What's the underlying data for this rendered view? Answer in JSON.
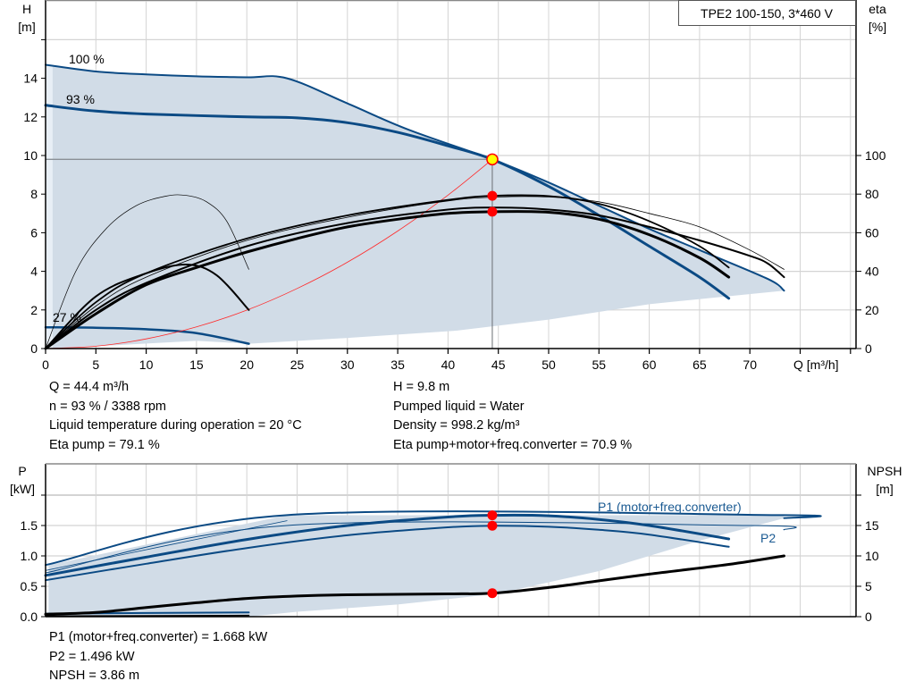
{
  "colors": {
    "curve_blue": "#0b4a84",
    "region_fill": "#d1dce7",
    "region_light": "#e8eff6",
    "grid": "#d4d4d4",
    "system_curve": "#ff2a2a",
    "duty_point": "#ffff00",
    "marker_red": "#ff0000",
    "label_blue": "#1a5a92"
  },
  "chart_data": [
    {
      "type": "line",
      "title": "TPE2 100-150, 3*460 V",
      "xlabel": "Q [m³/h]",
      "ylabel_top": "H",
      "ylabel_unit": "[m]",
      "y2label_top": "eta",
      "y2label_unit": "[%]",
      "xlim": [
        0,
        80
      ],
      "ylim": [
        0,
        18
      ],
      "y2lim": [
        0,
        180
      ],
      "grid": true,
      "xticks": [
        "0",
        "5",
        "10",
        "15",
        "20",
        "25",
        "30",
        "35",
        "40",
        "45",
        "50",
        "55",
        "60",
        "65",
        "70"
      ],
      "yticks": [
        "0",
        "2",
        "4",
        "6",
        "8",
        "10",
        "12",
        "14"
      ],
      "y2ticks": [
        "0",
        "20",
        "40",
        "60",
        "80",
        "100"
      ],
      "regions": [
        {
          "axis": "H",
          "points": [
            [
              0.7,
              0
            ],
            [
              0.7,
              0.5
            ],
            [
              0.4,
              3
            ],
            [
              0.3,
              14.7
            ],
            [
              5,
              14.35
            ],
            [
              10,
              14.2
            ],
            [
              15,
              14.1
            ],
            [
              20,
              14.05
            ],
            [
              24,
              14.0
            ],
            [
              30,
              12.7
            ],
            [
              36,
              11.35
            ],
            [
              44.4,
              9.8
            ],
            [
              50,
              8.6
            ],
            [
              55,
              7.4
            ],
            [
              60,
              6.2
            ],
            [
              65,
              5.1
            ],
            [
              71.8,
              3.6
            ],
            [
              73.4,
              3.0
            ],
            [
              60,
              2.3
            ],
            [
              50,
              1.5
            ],
            [
              40.9,
              0.93
            ],
            [
              30,
              0.55
            ],
            [
              20.2,
              0.25
            ],
            [
              15,
              0.4
            ]
          ]
        },
        {
          "axis": "H",
          "light": true,
          "points": [
            [
              0,
              0
            ],
            [
              0,
              14.7
            ],
            [
              0.7,
              14.7
            ],
            [
              0.7,
              0
            ]
          ]
        }
      ],
      "series": [
        {
          "name": "100 %",
          "axis": "H",
          "color": "blue",
          "width": 2,
          "points": [
            [
              0,
              14.7
            ],
            [
              5,
              14.35
            ],
            [
              10,
              14.2
            ],
            [
              15,
              14.1
            ],
            [
              20,
              14.05
            ],
            [
              24,
              14.0
            ],
            [
              30,
              12.7
            ],
            [
              36,
              11.35
            ],
            [
              44.4,
              9.8
            ],
            [
              50,
              8.6
            ],
            [
              55,
              7.4
            ],
            [
              60,
              6.2
            ],
            [
              65,
              5.1
            ],
            [
              71.8,
              3.6
            ],
            [
              73.4,
              3.0
            ]
          ]
        },
        {
          "name": "93 %",
          "axis": "H",
          "color": "blue",
          "width": 3,
          "points": [
            [
              0,
              12.6
            ],
            [
              5,
              12.3
            ],
            [
              10,
              12.15
            ],
            [
              20,
              12.0
            ],
            [
              25,
              11.95
            ],
            [
              30,
              11.7
            ],
            [
              35,
              11.2
            ],
            [
              40,
              10.5
            ],
            [
              44.4,
              9.8
            ],
            [
              50,
              8.4
            ],
            [
              55,
              6.9
            ],
            [
              60,
              5.3
            ],
            [
              65,
              3.7
            ],
            [
              67.9,
              2.6
            ]
          ]
        },
        {
          "name": "27 %",
          "axis": "H",
          "color": "blue",
          "width": 2.5,
          "points": [
            [
              0,
              1.1
            ],
            [
              5,
              1.08
            ],
            [
              10,
              1.0
            ],
            [
              15,
              0.8
            ],
            [
              20.2,
              0.25
            ]
          ]
        },
        {
          "axis": "H",
          "color": "red",
          "width": 0.8,
          "points": [
            [
              0,
              0
            ],
            [
              5,
              0.12
            ],
            [
              10,
              0.5
            ],
            [
              15,
              1.12
            ],
            [
              20,
              1.99
            ],
            [
              25,
              3.11
            ],
            [
              30,
              4.47
            ],
            [
              35,
              6.09
            ],
            [
              40,
              7.95
            ],
            [
              44.4,
              9.8
            ]
          ]
        },
        {
          "axis": "eta",
          "color": "black",
          "width": 0.7,
          "points": [
            [
              0,
              0
            ],
            [
              3,
              40
            ],
            [
              6,
              62
            ],
            [
              9,
              74
            ],
            [
              12,
              79
            ],
            [
              14,
              79.3
            ],
            [
              16,
              76
            ],
            [
              18,
              66
            ],
            [
              20.2,
              41
            ]
          ]
        },
        {
          "axis": "eta",
          "color": "black",
          "width": 2,
          "points": [
            [
              0,
              0
            ],
            [
              5,
              27
            ],
            [
              10,
              39
            ],
            [
              14,
              43.5
            ],
            [
              17,
              38
            ],
            [
              20.2,
              20
            ]
          ]
        },
        {
          "axis": "eta",
          "color": "black",
          "width": 0.8,
          "points": [
            [
              0,
              0
            ],
            [
              5,
              22
            ],
            [
              10,
              37
            ],
            [
              20,
              56
            ],
            [
              30,
              68
            ],
            [
              40,
              76.5
            ],
            [
              45,
              78.5
            ],
            [
              50,
              78.5
            ],
            [
              55,
              76
            ],
            [
              60,
              70
            ],
            [
              65,
              63
            ],
            [
              70,
              51
            ],
            [
              73.4,
              41
            ]
          ]
        },
        {
          "axis": "eta",
          "color": "black",
          "width": 1.8,
          "points": [
            [
              0,
              0
            ],
            [
              5,
              24
            ],
            [
              10,
              39
            ],
            [
              20,
              57
            ],
            [
              30,
              69
            ],
            [
              40,
              77
            ],
            [
              44.4,
              79.1
            ],
            [
              50,
              79
            ],
            [
              55,
              75
            ],
            [
              60,
              66
            ],
            [
              65,
              53
            ],
            [
              67.9,
              42
            ]
          ]
        },
        {
          "axis": "eta",
          "color": "black",
          "width": 2,
          "points": [
            [
              0,
              0
            ],
            [
              5,
              20
            ],
            [
              10,
              34
            ],
            [
              20,
              53
            ],
            [
              30,
              65
            ],
            [
              40,
              72
            ],
            [
              45,
              73
            ],
            [
              50,
              72
            ],
            [
              55,
              69
            ],
            [
              60,
              63
            ],
            [
              65,
              56
            ],
            [
              70,
              48
            ],
            [
              71.8,
              44
            ],
            [
              73.4,
              37
            ]
          ]
        },
        {
          "axis": "eta",
          "color": "black",
          "width": 3,
          "points": [
            [
              0,
              0
            ],
            [
              5,
              18
            ],
            [
              10,
              33
            ],
            [
              15,
              42
            ],
            [
              20,
              50
            ],
            [
              25,
              57
            ],
            [
              30,
              63
            ],
            [
              35,
              67
            ],
            [
              40,
              70
            ],
            [
              44.4,
              70.9
            ],
            [
              50,
              70.6
            ],
            [
              55,
              67
            ],
            [
              60,
              59
            ],
            [
              65,
              47
            ],
            [
              67.9,
              37
            ]
          ]
        }
      ],
      "duty_point": {
        "Q": 44.4,
        "H": 9.8,
        "eta_pump": 79.1,
        "eta_total": 70.9
      }
    },
    {
      "type": "line",
      "xlim": [
        0,
        80
      ],
      "ylabel_top": "P",
      "ylabel_unit": "[kW]",
      "y2label_top": "NPSH",
      "y2label_unit": "[m]",
      "ylim": [
        0,
        2.5
      ],
      "y2lim": [
        0,
        25
      ],
      "grid": true,
      "yticks": [
        "0.0",
        "0.5",
        "1.0",
        "1.5"
      ],
      "y2ticks": [
        "0",
        "5",
        "10",
        "15"
      ],
      "regions": [
        {
          "axis": "P",
          "points": [
            [
              0.3,
              0
            ],
            [
              0.3,
              0.85
            ],
            [
              24,
              1.67
            ],
            [
              73.4,
              1.67
            ],
            [
              73.4,
              1.62
            ],
            [
              65,
              1.25
            ],
            [
              55,
              0.75
            ],
            [
              45,
              0.38
            ],
            [
              35,
              0.2
            ],
            [
              25,
              0.08
            ],
            [
              20.2,
              0.0
            ]
          ]
        }
      ],
      "series": [
        {
          "name": "P1 (motor+freq.converter)",
          "axis": "P",
          "color": "blue",
          "width": 2,
          "points": [
            [
              0,
              0.85
            ],
            [
              24,
              1.67
            ],
            [
              73.4,
              1.67
            ],
            [
              73.4,
              1.62
            ]
          ]
        },
        {
          "name": "P2",
          "axis": "P",
          "color": "blue",
          "width": 1,
          "points": [
            [
              0,
              0.72
            ],
            [
              24,
              1.5
            ],
            [
              70,
              1.5
            ],
            [
              73.4,
              1.43
            ]
          ]
        },
        {
          "axis": "P",
          "color": "blue",
          "width": 0.8,
          "points": [
            [
              0,
              0.76
            ],
            [
              24,
              1.58
            ]
          ]
        },
        {
          "axis": "P",
          "color": "blue",
          "width": 3,
          "points": [
            [
              0,
              0.68
            ],
            [
              10,
              0.98
            ],
            [
              20,
              1.27
            ],
            [
              30,
              1.5
            ],
            [
              40,
              1.64
            ],
            [
              44.4,
              1.668
            ],
            [
              50,
              1.66
            ],
            [
              55,
              1.6
            ],
            [
              60,
              1.5
            ],
            [
              67.9,
              1.28
            ]
          ]
        },
        {
          "axis": "P",
          "color": "blue",
          "width": 2,
          "points": [
            [
              0,
              0.6
            ],
            [
              10,
              0.87
            ],
            [
              20,
              1.13
            ],
            [
              30,
              1.34
            ],
            [
              40,
              1.47
            ],
            [
              44.4,
              1.496
            ],
            [
              50,
              1.48
            ],
            [
              55,
              1.43
            ],
            [
              60,
              1.35
            ],
            [
              67.9,
              1.15
            ]
          ]
        },
        {
          "axis": "P",
          "color": "blue",
          "width": 2,
          "points": [
            [
              0,
              0.05
            ],
            [
              20.2,
              0.07
            ]
          ]
        },
        {
          "axis": "NPSH",
          "color": "black",
          "width": 3,
          "points": [
            [
              0,
              0.4
            ],
            [
              5,
              0.7
            ],
            [
              10,
              1.5
            ],
            [
              15,
              2.3
            ],
            [
              20,
              3.0
            ],
            [
              25,
              3.4
            ],
            [
              30,
              3.6
            ],
            [
              40,
              3.75
            ],
            [
              44.4,
              3.86
            ],
            [
              50,
              4.8
            ],
            [
              55,
              5.9
            ],
            [
              60,
              7.0
            ],
            [
              67.9,
              8.6
            ],
            [
              73.4,
              10.0
            ]
          ]
        },
        {
          "axis": "NPSH",
          "color": "black",
          "width": 1.5,
          "points": [
            [
              0,
              0.1
            ],
            [
              10,
              0.15
            ],
            [
              20.2,
              0.2
            ]
          ]
        }
      ],
      "markers": [
        {
          "axis": "P",
          "Q": 44.4,
          "value": 1.668
        },
        {
          "axis": "P",
          "Q": 44.4,
          "value": 1.496
        },
        {
          "axis": "NPSH",
          "Q": 44.4,
          "value": 3.86
        }
      ]
    }
  ],
  "readouts": {
    "left": [
      "Q = 44.4 m³/h",
      "n = 93 % / 3388 rpm",
      "Liquid temperature during operation = 20 °C",
      "Eta pump = 79.1 %"
    ],
    "right": [
      "H = 9.8 m",
      "Pumped liquid = Water",
      "Density = 998.2 kg/m³",
      "Eta pump+motor+freq.converter = 70.9 %"
    ],
    "bottom": [
      "P1 (motor+freq.converter) = 1.668 kW",
      "P2 = 1.496 kW",
      "NPSH = 3.86 m"
    ]
  }
}
